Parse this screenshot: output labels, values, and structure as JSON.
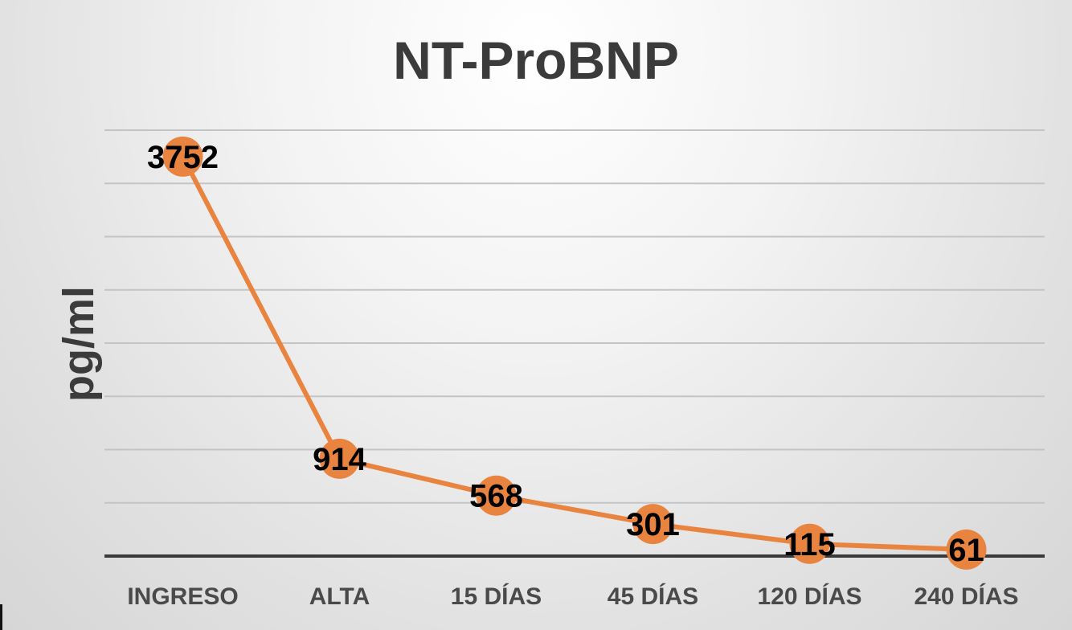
{
  "chart_data": {
    "type": "line",
    "title": "NT-ProBNP",
    "xlabel": "",
    "ylabel": "pg/ml",
    "categories": [
      "INGRESO",
      "ALTA",
      "15 DÍAS",
      "45 DÍAS",
      "120 DÍAS",
      "240 DÍAS"
    ],
    "series": [
      {
        "values": [
          3752,
          914,
          568,
          301,
          115,
          61
        ]
      }
    ],
    "data_labels": [
      "3752",
      "914",
      "568",
      "301",
      "115",
      "61"
    ],
    "ylim": [
      0,
      4000
    ],
    "y_gridlines": [
      0,
      500,
      1000,
      1500,
      2000,
      2500,
      3000,
      3500,
      4000
    ],
    "grid": true,
    "y_tick_labels_visible": false,
    "legend": "none",
    "colors": {
      "line": "#e8843f",
      "marker": "#e8843f",
      "grid": "#c4c4c4",
      "axis": "#3a3a3a",
      "title": "#3b3b3b"
    }
  }
}
